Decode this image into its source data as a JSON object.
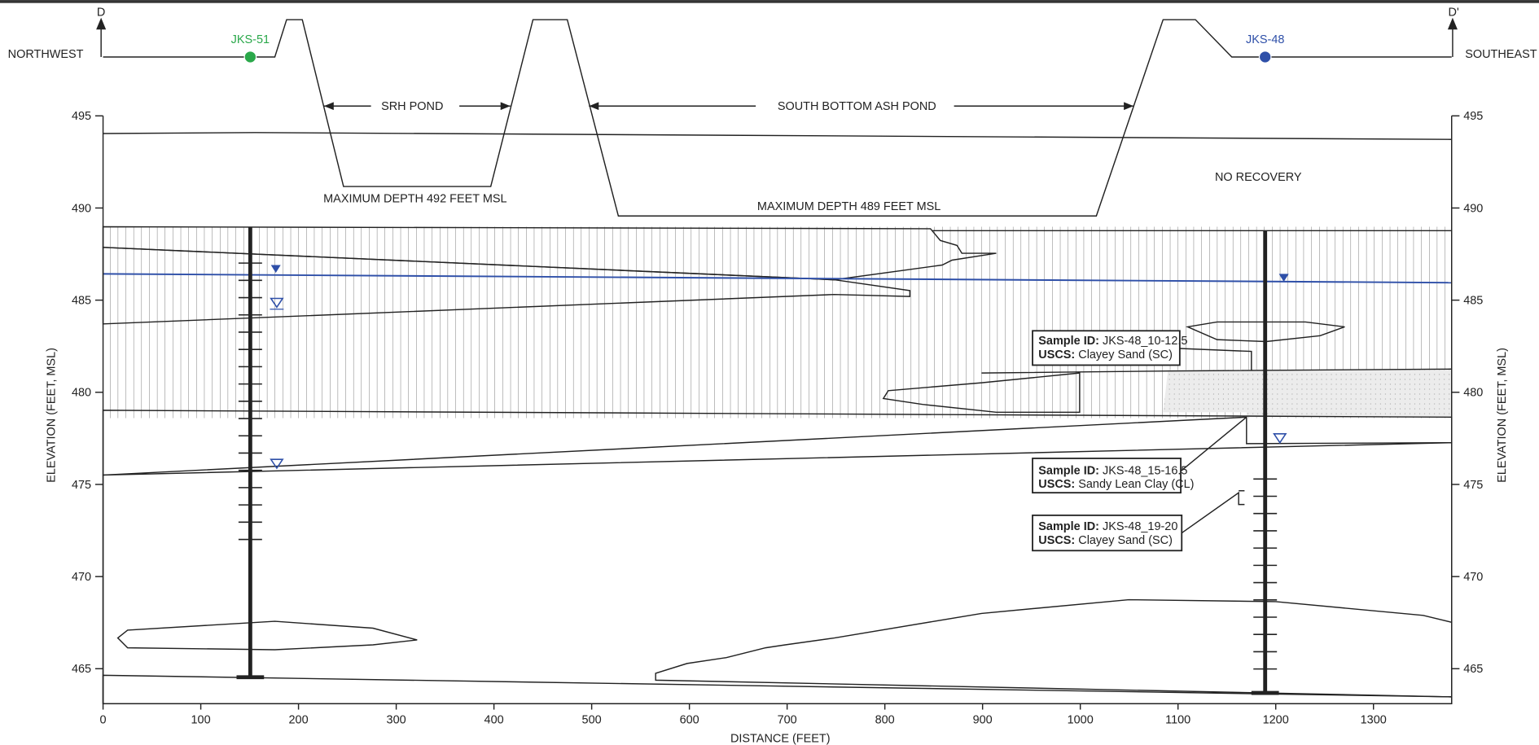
{
  "section": {
    "left_marker": "D",
    "right_marker": "D'",
    "left_direction": "NORTHWEST",
    "right_direction": "SOUTHEAST"
  },
  "wells": [
    {
      "name": "JKS-51",
      "color": "#2aa84a"
    },
    {
      "name": "JKS-48",
      "color": "#2e4fa8"
    }
  ],
  "labels": {
    "srh_pond": "SRH POND",
    "ash_pond": "SOUTH BOTTOM ASH POND",
    "max_depth_srh": "MAXIMUM DEPTH 492 FEET MSL",
    "max_depth_ash": "MAXIMUM DEPTH 489 FEET MSL",
    "no_recovery": "NO RECOVERY"
  },
  "samples": [
    {
      "id_label": "Sample ID:",
      "id": "JKS-48_10-12.5",
      "uscs_label": "USCS:",
      "uscs": "Clayey Sand (SC)"
    },
    {
      "id_label": "Sample ID:",
      "id": "JKS-48_15-16.5",
      "uscs_label": "USCS:",
      "uscs": "Sandy Lean Clay (CL)"
    },
    {
      "id_label": "Sample ID:",
      "id": "JKS-48_19-20",
      "uscs_label": "USCS:",
      "uscs": "Clayey Sand (SC)"
    }
  ],
  "x_axis": {
    "label": "DISTANCE (FEET)",
    "lim": [
      0,
      1380
    ],
    "ticks": [
      0,
      100,
      200,
      300,
      400,
      500,
      600,
      700,
      800,
      900,
      1000,
      1100,
      1200,
      1300
    ]
  },
  "y_axis": {
    "label": "ELEVATION (FEET, MSL)",
    "lim": [
      463.1,
      495
    ],
    "ticks": [
      465,
      470,
      475,
      480,
      485,
      490,
      495
    ]
  }
}
